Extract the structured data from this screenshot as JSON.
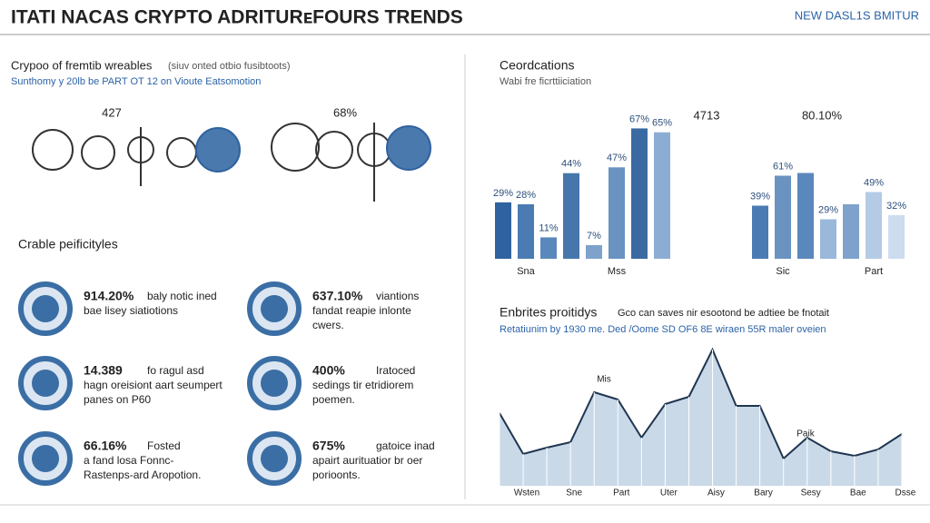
{
  "header": {
    "title": "ITATI NACAS CRYPTO ADRITURᴇFOURS TRENDS",
    "badge": "NEW DASL1S BMITUR"
  },
  "left": {
    "title": "Crypoo of fremtib wreables",
    "title_note": "(siuv onted otbio fusibtoots)",
    "subtitle": "Sunthomy y 20lb be PART OT 12 on Vioute Eatsomotion",
    "icon_labels": [
      "427",
      "68%"
    ],
    "section": "Crable peificityles",
    "stats": [
      {
        "value": "914.20%",
        "lines": [
          "baly notic ined",
          "bae lisey siatiotions"
        ]
      },
      {
        "value": "637.10%",
        "lines": [
          "viantions",
          "fandat reapie inlonte",
          "cwers."
        ]
      },
      {
        "value": "14.389",
        "lines": [
          "fo ragul asd",
          "hagn oreisiont aart seumpert",
          "panes on P60"
        ]
      },
      {
        "value": "400%",
        "lines": [
          "Iratoced",
          "sedings tir etridiorem",
          "poemen."
        ]
      },
      {
        "value": "66.16%",
        "lines": [
          "Fosted",
          "a fand losa Fonnc-",
          "Rastenps-ard Aropotion."
        ]
      },
      {
        "value": "675%",
        "lines": [
          "gatoice inad",
          "apairt aurituatior br oer",
          "porioonts."
        ]
      }
    ]
  },
  "chart_data": [
    {
      "type": "bar",
      "title": "Ceordcations",
      "subtitle": "Wabi fre ficrttiiciation",
      "categories": [
        null,
        "Sna",
        null,
        null,
        null,
        "Mss",
        null,
        null
      ],
      "values": [
        29,
        28,
        11,
        44,
        7,
        47,
        67,
        65
      ],
      "value_labels": [
        "29%",
        "28%",
        "11%",
        "44%",
        "7%",
        "47%",
        "67%",
        "65%"
      ],
      "colors": [
        "#2f62a0",
        "#4a7bb3",
        "#5b88bc",
        "#4676ac",
        "#7ea2cb",
        "#6a93c1",
        "#3b6aa3",
        "#8cadd3"
      ],
      "ylim": [
        0,
        70
      ]
    },
    {
      "type": "bar",
      "headers": [
        "4713",
        "80.10%"
      ],
      "categories": [
        null,
        "Sic",
        null,
        null,
        null,
        "Part",
        null
      ],
      "values": [
        39,
        61,
        63,
        29,
        40,
        49,
        32
      ],
      "value_labels": [
        "39%",
        "61%",
        null,
        "29%",
        null,
        "49%",
        "32%"
      ],
      "colors": [
        "#4a7bb3",
        "#6a93c1",
        "#5b88bc",
        "#9ab8da",
        "#7ea2cb",
        "#b4cbe5",
        "#cddcee"
      ],
      "ylim": [
        0,
        100
      ]
    },
    {
      "type": "area",
      "title": "Enbrites proitidys",
      "note": "Gco can saves nir esootond be adtiee be fnotait",
      "subtitle": "Retatiunim by 1930 me. Ded /Oome SD OF6 8E wiraen 55R maler oveien",
      "categories": [
        "Wsten",
        null,
        "Sne",
        null,
        "Part",
        null,
        "Uter",
        null,
        "Aisy",
        null,
        "Bary",
        null,
        "Sesy",
        null,
        "Bae",
        null,
        "Dsse",
        null
      ],
      "values": [
        80,
        35,
        42,
        48,
        103,
        95,
        53,
        90,
        98,
        150,
        88,
        88,
        30,
        53,
        38,
        33,
        40,
        57
      ],
      "annotations": [
        "Mis",
        "Paik"
      ],
      "color": "#1f3550",
      "fill": "#c9d9e8",
      "ylim": [
        0,
        160
      ]
    }
  ]
}
